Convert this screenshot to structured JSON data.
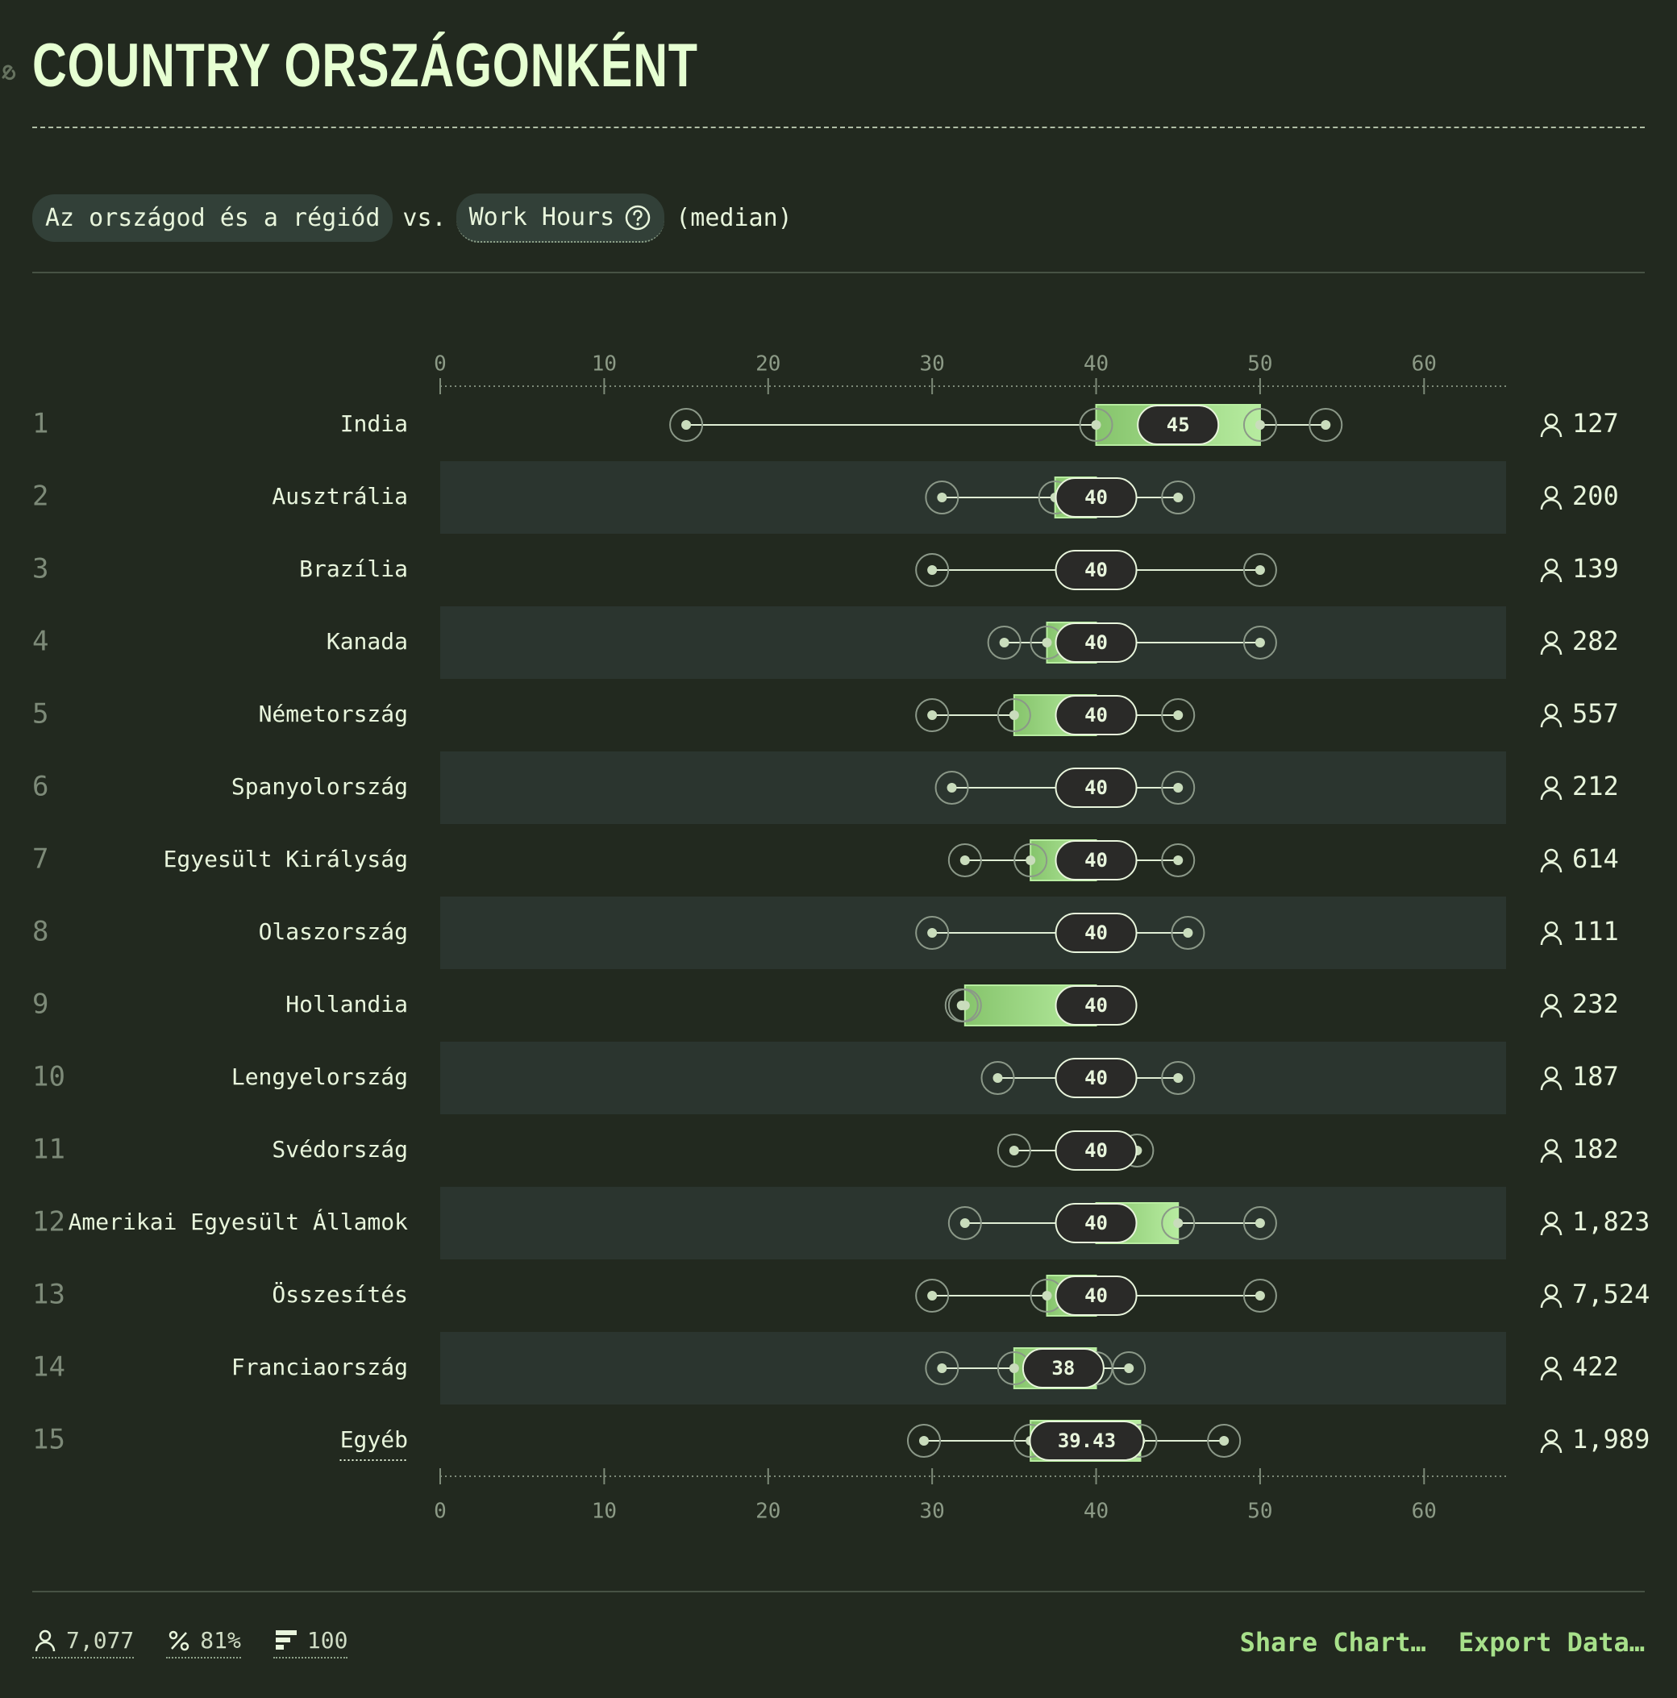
{
  "title": "COUNTRY ORSZÁGONKÉNT",
  "filters": {
    "group_label": "Az országod és a régiód",
    "vs_label": "vs.",
    "metric_label": "Work Hours",
    "stat_label": "(median)"
  },
  "colors": {
    "background": "#22291f",
    "band": "#2b352f",
    "accent": "#a7e08a",
    "box_light": "#b7eca0",
    "box_dark": "#86c46c",
    "text": "#e8f5dc",
    "muted": "#7d8a78"
  },
  "chart_data": {
    "type": "boxplot",
    "xlim": [
      0,
      65
    ],
    "ticks": [
      0,
      10,
      20,
      30,
      40,
      50,
      60
    ],
    "grid": false,
    "legend": "none",
    "rows": [
      {
        "rank": "1",
        "label": "India",
        "min": 15,
        "q1": 40,
        "median": 45,
        "q3": 50,
        "max": 54,
        "median_label": "45",
        "count": "127"
      },
      {
        "rank": "2",
        "label": "Ausztrália",
        "min": 30.6,
        "q1": 37.5,
        "median": 40,
        "q3": 40,
        "max": 45,
        "median_label": "40",
        "count": "200"
      },
      {
        "rank": "3",
        "label": "Brazília",
        "min": 30,
        "q1": 40,
        "median": 40,
        "q3": 40,
        "max": 50,
        "median_label": "40",
        "count": "139"
      },
      {
        "rank": "4",
        "label": "Kanada",
        "min": 34.4,
        "q1": 37,
        "median": 40,
        "q3": 40,
        "max": 50,
        "median_label": "40",
        "count": "282"
      },
      {
        "rank": "5",
        "label": "Németország",
        "min": 30,
        "q1": 35,
        "median": 40,
        "q3": 40,
        "max": 45,
        "median_label": "40",
        "count": "557"
      },
      {
        "rank": "6",
        "label": "Spanyolország",
        "min": 31.2,
        "q1": 40,
        "median": 40,
        "q3": 40,
        "max": 45,
        "median_label": "40",
        "count": "212"
      },
      {
        "rank": "7",
        "label": "Egyesült Királyság",
        "min": 32,
        "q1": 36,
        "median": 40,
        "q3": 40,
        "max": 45,
        "median_label": "40",
        "count": "614"
      },
      {
        "rank": "8",
        "label": "Olaszország",
        "min": 30,
        "q1": 40,
        "median": 40,
        "q3": 40,
        "max": 45.6,
        "median_label": "40",
        "count": "111"
      },
      {
        "rank": "9",
        "label": "Hollandia",
        "min": 31.8,
        "q1": 32,
        "median": 40,
        "q3": 40,
        "max": 40,
        "median_label": "40",
        "count": "232"
      },
      {
        "rank": "10",
        "label": "Lengyelország",
        "min": 34,
        "q1": 40,
        "median": 40,
        "q3": 40,
        "max": 45,
        "median_label": "40",
        "count": "187"
      },
      {
        "rank": "11",
        "label": "Svédország",
        "min": 35,
        "q1": 40,
        "median": 40,
        "q3": 40,
        "max": 42.5,
        "median_label": "40",
        "count": "182"
      },
      {
        "rank": "12",
        "label": "Amerikai Egyesült Államok",
        "min": 32,
        "q1": 40,
        "median": 40,
        "q3": 45,
        "max": 50,
        "median_label": "40",
        "count": "1,823"
      },
      {
        "rank": "13",
        "label": "Összesítés",
        "min": 30,
        "q1": 37,
        "median": 40,
        "q3": 40,
        "max": 50,
        "median_label": "40",
        "count": "7,524"
      },
      {
        "rank": "14",
        "label": "Franciaország",
        "min": 30.6,
        "q1": 35,
        "median": 38,
        "q3": 40,
        "max": 42,
        "median_label": "38",
        "count": "422"
      },
      {
        "rank": "15",
        "label": "Egyéb",
        "min": 29.5,
        "q1": 36,
        "median": 39.43,
        "q3": 42.7,
        "max": 47.8,
        "median_label": "39.43",
        "count": "1,989"
      }
    ]
  },
  "footer": {
    "respondents": "7,077",
    "percent": "81%",
    "questions": "100"
  },
  "actions": {
    "share": "Share Chart…",
    "export": "Export Data…"
  }
}
